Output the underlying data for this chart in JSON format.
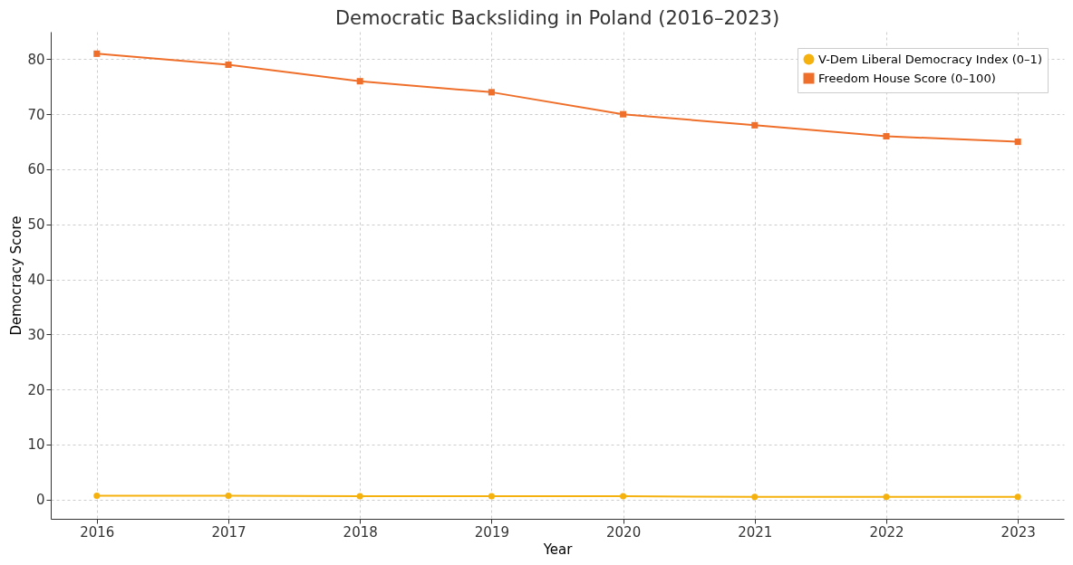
{
  "chart_data": {
    "type": "line",
    "title": "Democratic Backsliding in Poland (2016–2023)",
    "xlabel": "Year",
    "ylabel": "Democracy Score",
    "x": [
      2016,
      2017,
      2018,
      2019,
      2020,
      2021,
      2022,
      2023
    ],
    "series": [
      {
        "name": "V-Dem Liberal Democracy Index (0–1)",
        "color": "#f5b20f",
        "marker": "circle",
        "values": [
          0.7,
          0.7,
          0.6,
          0.6,
          0.6,
          0.5,
          0.5,
          0.5
        ]
      },
      {
        "name": "Freedom House Score (0–100)",
        "color": "#ef6f2a",
        "marker": "square",
        "values": [
          81,
          79,
          76,
          74,
          70,
          68,
          66,
          65
        ]
      }
    ],
    "xlim": [
      2015.65,
      2023.35
    ],
    "xticks": [
      2016,
      2017,
      2018,
      2019,
      2020,
      2021,
      2022,
      2023
    ],
    "ylim": [
      -3.5,
      85
    ],
    "yticks": [
      0,
      10,
      20,
      30,
      40,
      50,
      60,
      70,
      80
    ],
    "grid": true,
    "legend": "top right",
    "line_style": "solid"
  }
}
